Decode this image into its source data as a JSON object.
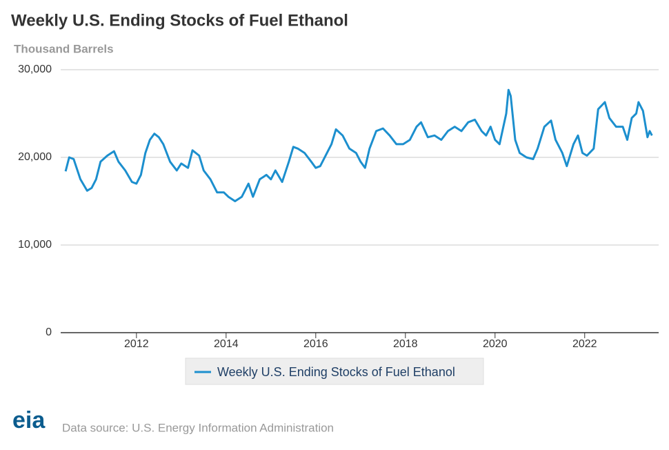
{
  "chart_data": {
    "type": "line",
    "title": "Weekly U.S. Ending Stocks of Fuel Ethanol",
    "y_label": "Thousand Barrels",
    "source": "Data source: U.S. Energy Information Administration",
    "logo": "eia",
    "xlim": [
      2010.31,
      2023.65
    ],
    "xticks": [
      2012,
      2014,
      2016,
      2018,
      2020,
      2022
    ],
    "ylim": [
      0,
      30000
    ],
    "yticks": [
      0,
      {
        "value": 10000,
        "label": "10,000"
      },
      {
        "value": 20000,
        "label": "20,000"
      },
      {
        "value": 30000,
        "label": "30,000"
      }
    ],
    "grid": true,
    "legend": "bottom",
    "x": [
      2010.42,
      2010.5,
      2010.6,
      2010.75,
      2010.9,
      2011.0,
      2011.1,
      2011.2,
      2011.35,
      2011.5,
      2011.6,
      2011.75,
      2011.9,
      2012.0,
      2012.1,
      2012.2,
      2012.3,
      2012.4,
      2012.5,
      2012.6,
      2012.75,
      2012.9,
      2013.0,
      2013.15,
      2013.25,
      2013.4,
      2013.5,
      2013.65,
      2013.8,
      2013.95,
      2014.05,
      2014.2,
      2014.35,
      2014.5,
      2014.6,
      2014.75,
      2014.9,
      2015.0,
      2015.1,
      2015.25,
      2015.4,
      2015.5,
      2015.6,
      2015.75,
      2015.9,
      2016.0,
      2016.1,
      2016.25,
      2016.35,
      2016.45,
      2016.6,
      2016.75,
      2016.9,
      2017.0,
      2017.1,
      2017.2,
      2017.35,
      2017.5,
      2017.65,
      2017.8,
      2017.95,
      2018.1,
      2018.25,
      2018.35,
      2018.5,
      2018.65,
      2018.8,
      2018.95,
      2019.1,
      2019.25,
      2019.4,
      2019.55,
      2019.7,
      2019.8,
      2019.9,
      2020.0,
      2020.1,
      2020.25,
      2020.3,
      2020.35,
      2020.45,
      2020.55,
      2020.7,
      2020.85,
      2020.95,
      2021.1,
      2021.25,
      2021.35,
      2021.5,
      2021.6,
      2021.75,
      2021.85,
      2021.95,
      2022.05,
      2022.2,
      2022.3,
      2022.45,
      2022.55,
      2022.7,
      2022.85,
      2022.95,
      2023.05,
      2023.15,
      2023.2,
      2023.3,
      2023.4,
      2023.45,
      2023.5
    ],
    "series": [
      {
        "name": "Weekly U.S. Ending Stocks of Fuel Ethanol",
        "color": "#1c8fce",
        "values": [
          18400,
          20000,
          19800,
          17500,
          16200,
          16500,
          17500,
          19500,
          20200,
          20700,
          19500,
          18500,
          17200,
          17000,
          18000,
          20500,
          22000,
          22700,
          22300,
          21500,
          19500,
          18500,
          19300,
          18800,
          20800,
          20200,
          18500,
          17500,
          16000,
          16000,
          15500,
          15000,
          15500,
          17000,
          15500,
          17500,
          18000,
          17500,
          18500,
          17200,
          19500,
          21200,
          21000,
          20500,
          19500,
          18800,
          19000,
          20500,
          21500,
          23200,
          22500,
          21000,
          20500,
          19500,
          18800,
          21000,
          23000,
          23300,
          22500,
          21500,
          21500,
          22000,
          23500,
          24000,
          22300,
          22500,
          22000,
          23000,
          23500,
          23000,
          24000,
          24300,
          23000,
          22500,
          23500,
          22000,
          21500,
          25000,
          27700,
          27000,
          22000,
          20500,
          20000,
          19800,
          21000,
          23500,
          24200,
          22000,
          20500,
          19000,
          21500,
          22500,
          20500,
          20200,
          21000,
          25500,
          26300,
          24500,
          23500,
          23500,
          22000,
          24500,
          25000,
          26300,
          25300,
          22300,
          23000,
          22500
        ]
      }
    ]
  }
}
